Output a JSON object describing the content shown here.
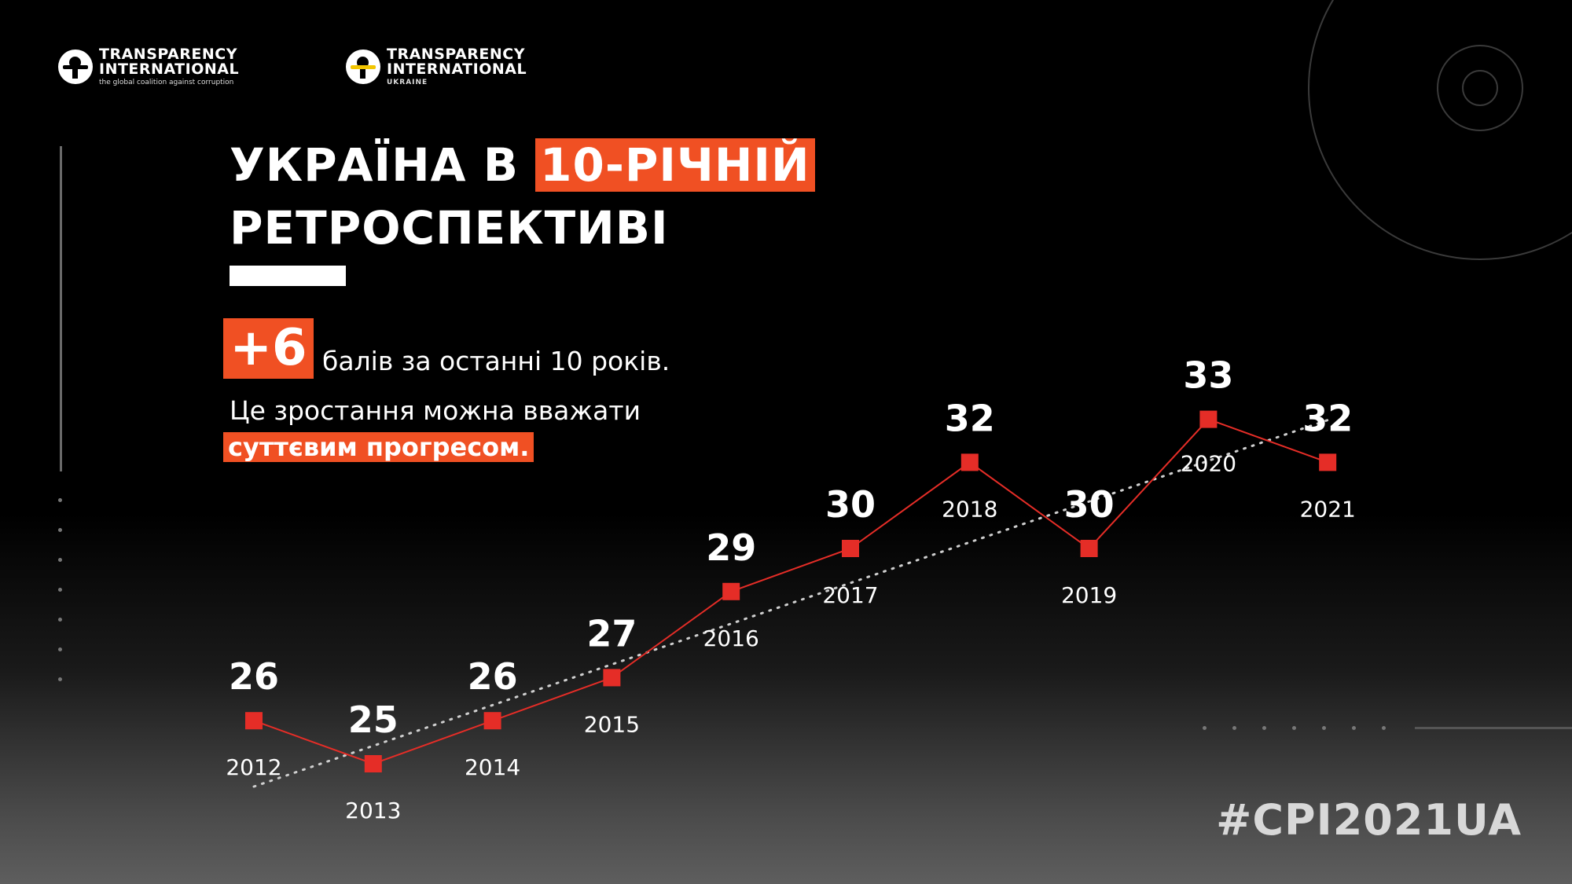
{
  "logos": {
    "global": {
      "line1": "TRANSPARENCY",
      "line2": "INTERNATIONAL",
      "tagline": "the global coalition against corruption"
    },
    "ukraine": {
      "line1": "TRANSPARENCY",
      "line2": "INTERNATIONAL",
      "tagline": "UKRAINE"
    }
  },
  "title": {
    "part1": "УКРАЇНА В ",
    "highlight": "10-РІЧНІЙ",
    "line2": "РЕТРОСПЕКТИВІ"
  },
  "summary": {
    "badge": "+6",
    "line1": "балів за останні 10 років.",
    "line2": "Це зростання можна вважати",
    "line3": "суттєвим прогресом."
  },
  "hashtag": "#CPI2021UA",
  "colors": {
    "accent": "#f05023",
    "marker": "#e52d27",
    "background": "#000000",
    "trend": "#cfcfcf"
  },
  "chart_data": {
    "type": "line",
    "title": "УКРАЇНА В 10-РІЧНІЙ РЕТРОСПЕКТИВІ",
    "categories": [
      "2012",
      "2013",
      "2014",
      "2015",
      "2016",
      "2017",
      "2018",
      "2019",
      "2020",
      "2021"
    ],
    "series": [
      {
        "values": [
          26,
          25,
          26,
          27,
          29,
          30,
          32,
          30,
          33,
          32
        ]
      }
    ],
    "trendline": "linear, dotted",
    "ylim": [
      25,
      33
    ],
    "grid": false,
    "legend": "none"
  }
}
